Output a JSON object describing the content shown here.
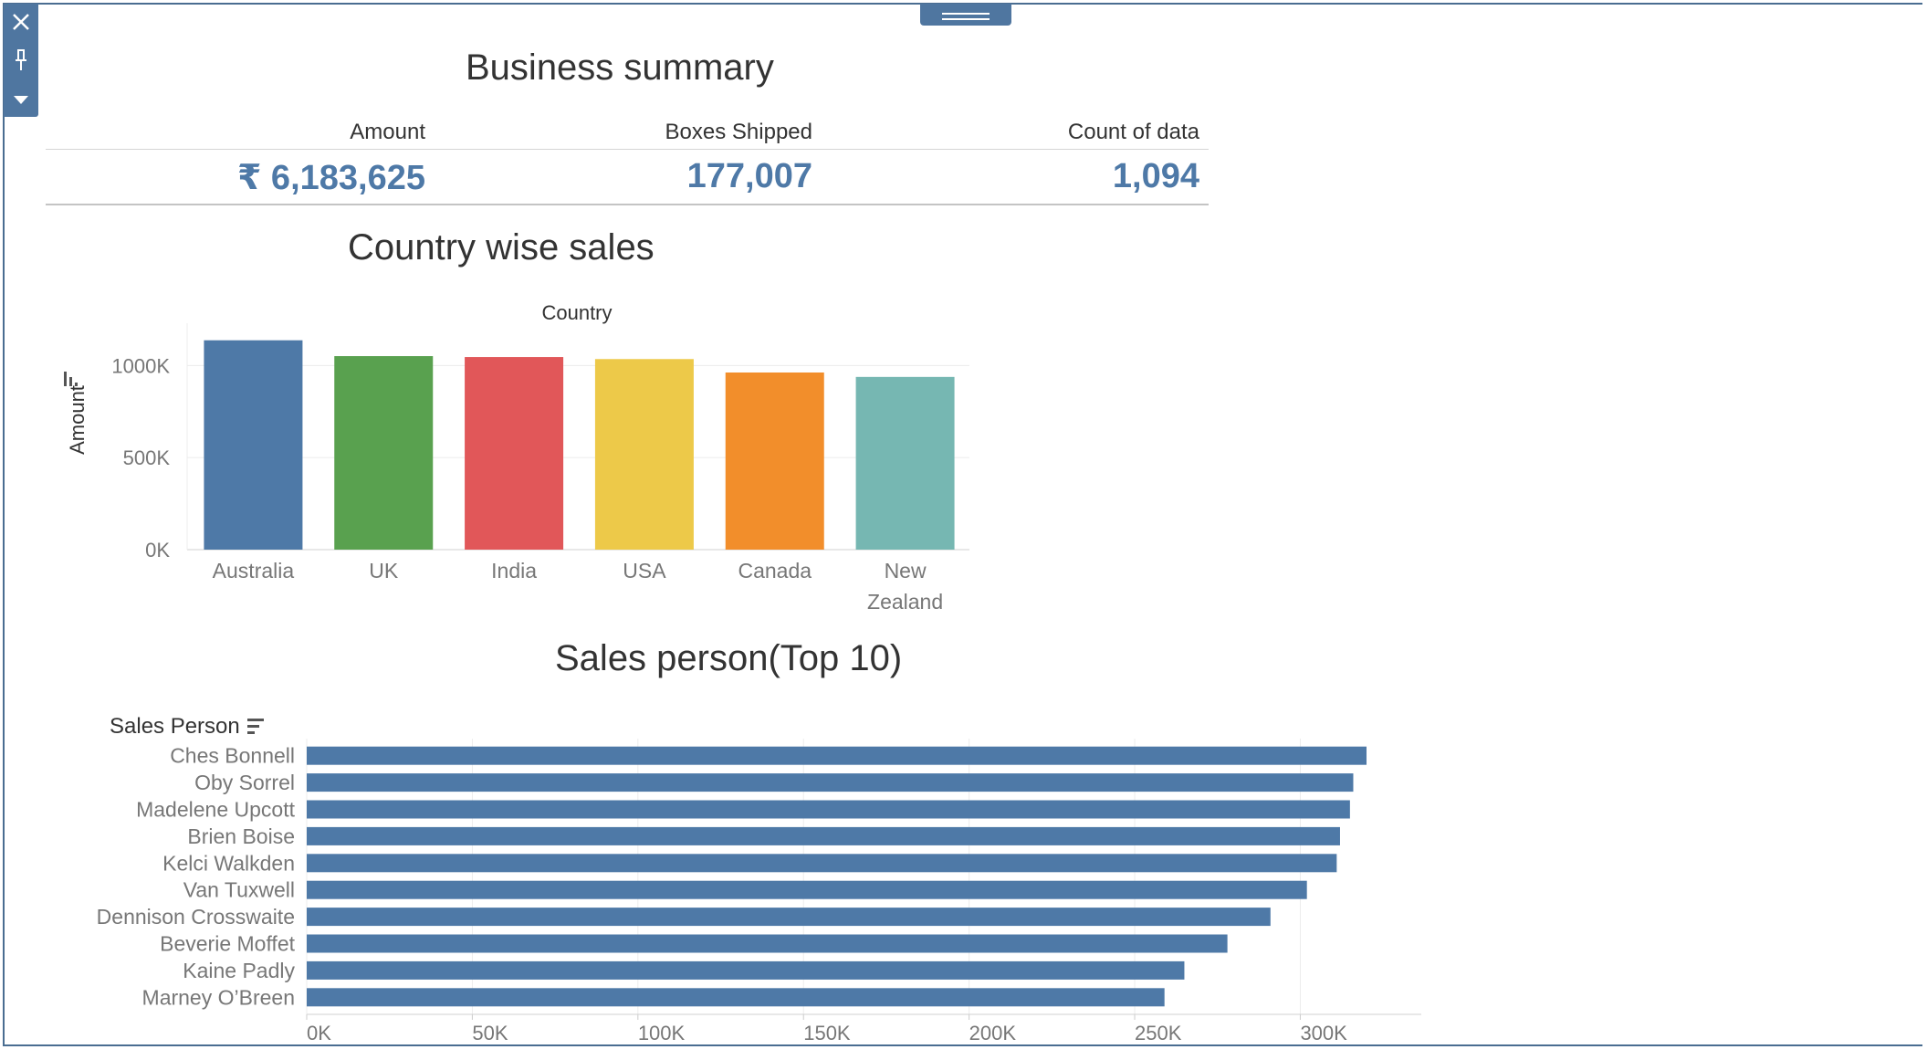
{
  "toolbar": {
    "close_icon": "close-icon",
    "pin_icon": "pin-icon",
    "menu_icon": "dropdown-arrow-icon"
  },
  "summary": {
    "title": "Business summary",
    "headers": [
      "Amount",
      "Boxes Shipped",
      "Count of data"
    ],
    "values": [
      "₹ 6,183,625",
      "177,007",
      "1,094"
    ]
  },
  "country_chart_title": "Country wise sales",
  "sales_chart_title": "Sales person(Top 10)",
  "chart_data": [
    {
      "type": "bar",
      "title": "Country wise sales",
      "column_header": "Country",
      "ylabel": "Amount",
      "categories": [
        "Australia",
        "UK",
        "India",
        "USA",
        "Canada",
        "New Zealand"
      ],
      "values": [
        1137000,
        1051000,
        1046000,
        1035000,
        962000,
        938000
      ],
      "colors": [
        "#4e79a7",
        "#59a14f",
        "#e15759",
        "#edc949",
        "#f28e2b",
        "#76b7b2"
      ],
      "yticks": [
        "0K",
        "500K",
        "1000K"
      ],
      "ylim": [
        0,
        1200000
      ],
      "grid": true
    },
    {
      "type": "bar",
      "orientation": "horizontal",
      "title": "Sales person(Top 10)",
      "row_header": "Sales Person",
      "categories": [
        "Ches Bonnell",
        "Oby Sorrel",
        "Madelene Upcott",
        "Brien Boise",
        "Kelci Walkden",
        "Van Tuxwell",
        "Dennison Crosswaite",
        "Beverie Moffet",
        "Kaine Padly",
        "Marney O’Breen"
      ],
      "values": [
        320000,
        316000,
        315000,
        312000,
        311000,
        302000,
        291000,
        278000,
        265000,
        259000
      ],
      "color": "#4e79a7",
      "xticks": [
        "0K",
        "50K",
        "100K",
        "150K",
        "200K",
        "250K",
        "300K"
      ],
      "xlim": [
        0,
        330000
      ],
      "grid": true
    }
  ]
}
